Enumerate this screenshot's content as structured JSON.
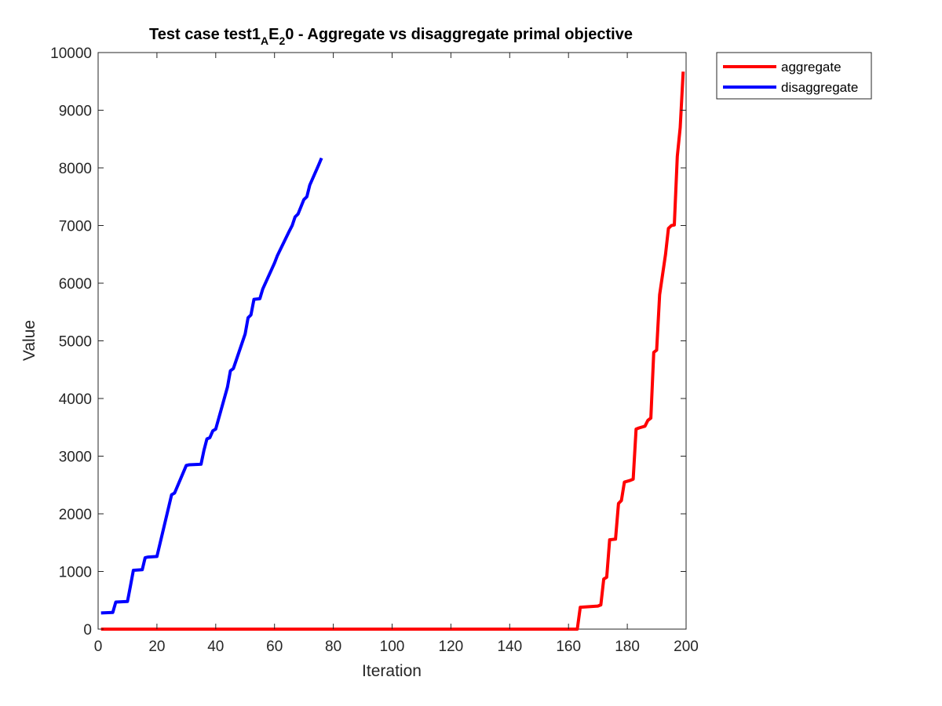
{
  "chart_data": {
    "type": "line",
    "title": {
      "prefix": "Test case test1",
      "sub1": "A",
      "mid": "E",
      "sub2": "2",
      "suffix": "0 - Aggregate vs disaggregate primal objective"
    },
    "xlabel": "Iteration",
    "ylabel": "Value",
    "xlim": [
      0,
      200
    ],
    "ylim": [
      0,
      10000
    ],
    "xticks": [
      0,
      20,
      40,
      60,
      80,
      100,
      120,
      140,
      160,
      180,
      200
    ],
    "yticks": [
      0,
      1000,
      2000,
      3000,
      4000,
      5000,
      6000,
      7000,
      8000,
      9000,
      10000
    ],
    "grid": false,
    "legend_position": "outside-top-right",
    "series": [
      {
        "name": "aggregate",
        "color": "#ff0000",
        "x": [
          1,
          163,
          164,
          170,
          171,
          172,
          173,
          174,
          176,
          177,
          178,
          179,
          181,
          182,
          183,
          184,
          186,
          187,
          188,
          189,
          190,
          191,
          193,
          194,
          195,
          196,
          197,
          198,
          199
        ],
        "y": [
          0,
          0,
          380,
          400,
          420,
          870,
          900,
          1550,
          1560,
          2180,
          2230,
          2550,
          2580,
          2600,
          3470,
          3490,
          3520,
          3620,
          3660,
          4800,
          4840,
          5800,
          6500,
          6950,
          7000,
          7010,
          8200,
          8700,
          9670
        ]
      },
      {
        "name": "disaggregate",
        "color": "#0000ff",
        "x": [
          1,
          5,
          6,
          10,
          11,
          12,
          15,
          16,
          17,
          20,
          25,
          26,
          30,
          31,
          35,
          36,
          37,
          38,
          39,
          40,
          44,
          45,
          46,
          50,
          51,
          52,
          53,
          55,
          56,
          60,
          61,
          65,
          66,
          67,
          68,
          70,
          71,
          72,
          75,
          76
        ],
        "y": [
          280,
          290,
          470,
          480,
          750,
          1020,
          1030,
          1240,
          1250,
          1260,
          2330,
          2360,
          2840,
          2850,
          2860,
          3100,
          3300,
          3320,
          3440,
          3470,
          4200,
          4480,
          4520,
          5120,
          5400,
          5450,
          5720,
          5730,
          5900,
          6350,
          6480,
          6900,
          7000,
          7150,
          7200,
          7450,
          7500,
          7700,
          8050,
          8170
        ]
      }
    ]
  }
}
